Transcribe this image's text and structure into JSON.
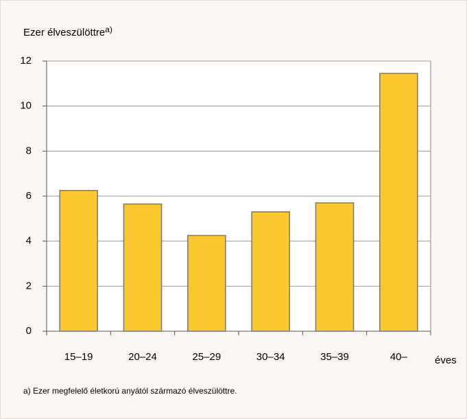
{
  "chart_data": {
    "type": "bar",
    "y_label": "Ezer élveszülöttre",
    "y_label_note": "a)",
    "x_unit": "éves",
    "footnote": "a) Ezer megfelelő életkorú anyától származó élveszülöttre.",
    "categories": [
      "15–19",
      "20–24",
      "25–29",
      "30–34",
      "35–39",
      "40–"
    ],
    "values": [
      6.25,
      5.65,
      4.25,
      5.3,
      5.7,
      11.45
    ],
    "color": "#fdc82f",
    "ylim": [
      0,
      12
    ],
    "yticks": [
      0,
      2,
      4,
      6,
      8,
      10,
      12
    ],
    "grid": true
  }
}
